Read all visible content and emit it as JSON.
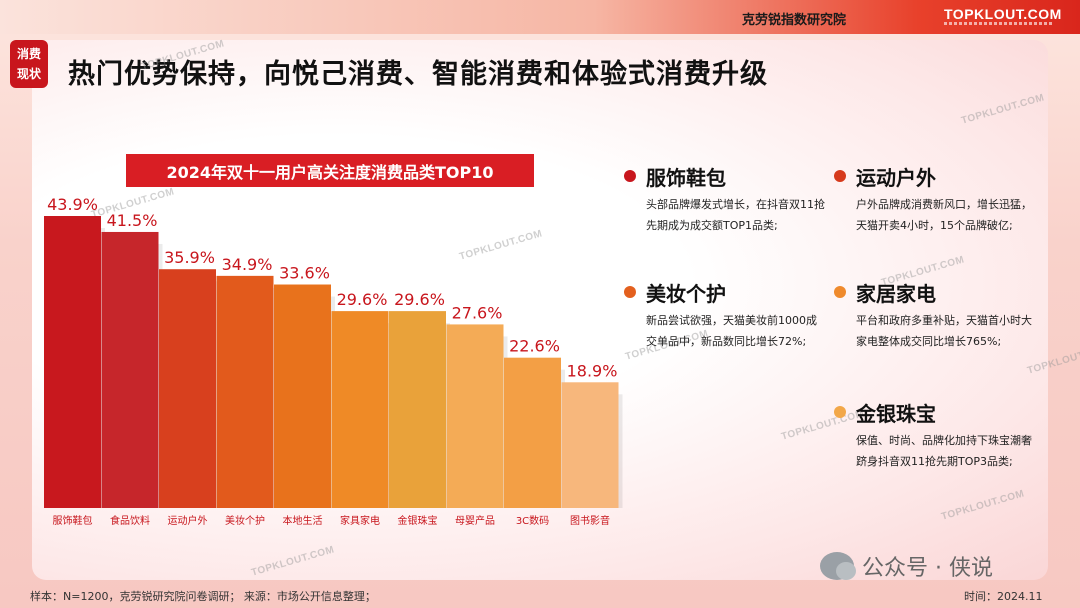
{
  "header": {
    "org": "克劳锐指数研究院",
    "brand": "TOPKLOUT.COM"
  },
  "section_tag": [
    "消费",
    "现状"
  ],
  "headline": "热门优势保持，向悦己消费、智能消费和体验式消费升级",
  "watermark_text": "TOPKLOUT.COM",
  "chart_data": {
    "type": "bar",
    "title": "2024年双十一用户高关注度消费品类TOP10",
    "categories": [
      "服饰鞋包",
      "食品饮料",
      "运动户外",
      "美妆个护",
      "本地生活",
      "家具家电",
      "金银珠宝",
      "母婴产品",
      "3C数码",
      "图书影音"
    ],
    "values": [
      43.9,
      41.5,
      35.9,
      34.9,
      33.6,
      29.6,
      29.6,
      27.6,
      22.6,
      18.9
    ],
    "value_labels": [
      "43.9%",
      "41.5%",
      "35.9%",
      "34.9%",
      "33.6%",
      "29.6%",
      "29.6%",
      "27.6%",
      "22.6%",
      "18.9%"
    ],
    "colors": [
      "#c8181e",
      "#c6262b",
      "#d8401e",
      "#e25a1c",
      "#e8721c",
      "#ef8a26",
      "#e9a23a",
      "#f4ab56",
      "#f39f45",
      "#f7b77c"
    ],
    "label_color": "#c8161d",
    "unit": "%",
    "grid": false
  },
  "highlights": [
    {
      "title": "服饰鞋包",
      "color": "#c8161d",
      "desc": "头部品牌爆发式增长，在抖音双11抢先期成为成交额TOP1品类;"
    },
    {
      "title": "运动户外",
      "color": "#d63a1c",
      "desc": "户外品牌成消费新风口，增长迅猛，天猫开卖4小时，15个品牌破亿;"
    },
    {
      "title": "美妆个护",
      "color": "#e3601e",
      "desc": "新品尝试欲强，天猫美妆前1000成交单品中，新品数同比增长72%;"
    },
    {
      "title": "家居家电",
      "color": "#ef8a2c",
      "desc": "平台和政府多重补贴，天猫首小时大家电整体成交同比增长765%;"
    },
    {
      "title": "金银珠宝",
      "color": "#f2a748",
      "desc": "保值、时尚、品牌化加持下珠宝潮奢跻身抖音双11抢先期TOP3品类;"
    }
  ],
  "footer": {
    "source": "样本：N=1200，克劳锐研究院问卷调研；    来源：市场公开信息整理；",
    "date": "时间：2024.11",
    "wechat": "公众号 · 侠说"
  }
}
